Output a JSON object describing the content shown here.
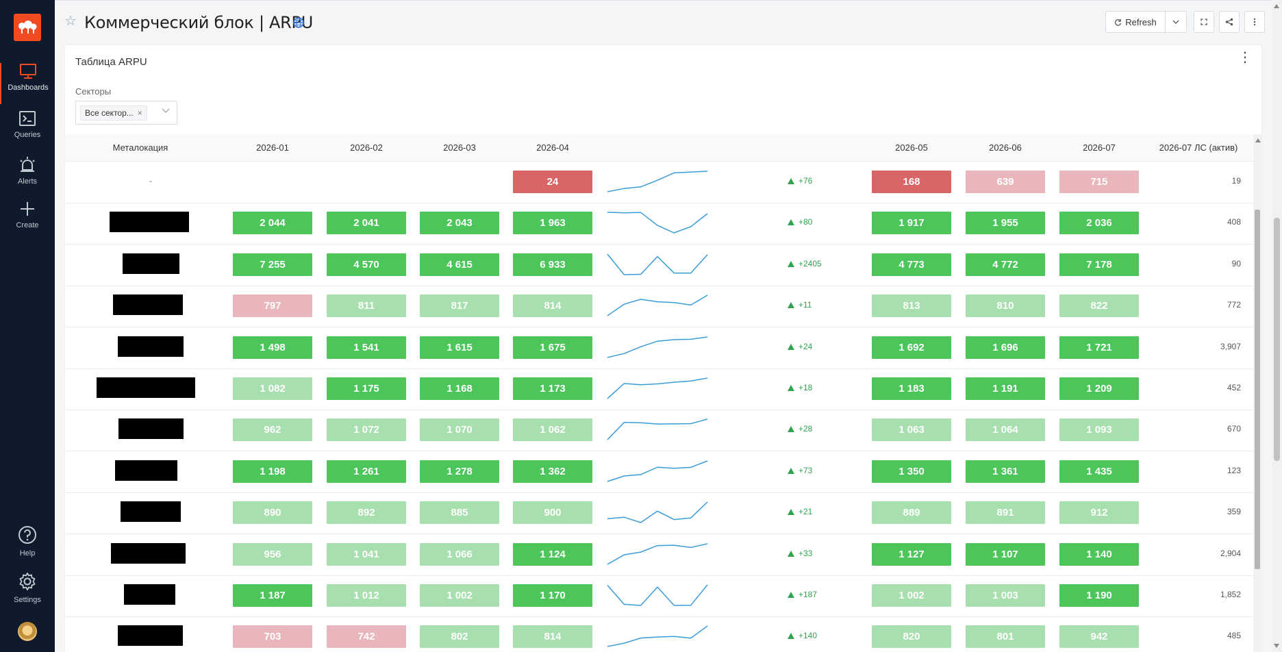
{
  "nav": {
    "items": [
      {
        "label": "Dashboards",
        "icon": "monitor-icon"
      },
      {
        "label": "Queries",
        "icon": "terminal-icon"
      },
      {
        "label": "Alerts",
        "icon": "alarm-icon"
      },
      {
        "label": "Create",
        "icon": "plus-icon"
      }
    ],
    "bottom": [
      {
        "label": "Help",
        "icon": "help-icon"
      },
      {
        "label": "Settings",
        "icon": "gear-icon"
      }
    ]
  },
  "header": {
    "title": "Коммерческий блок | ARPU",
    "refresh_label": "Refresh"
  },
  "widget": {
    "title": "Таблица ARPU",
    "filter_label": "Секторы",
    "filter_value": "Все сектор..."
  },
  "table": {
    "columns": [
      "Металокация",
      "2026-01",
      "2026-02",
      "2026-03",
      "2026-04",
      "2026-05",
      "2026-06",
      "2026-07",
      "2026-07 ЛС (актив)"
    ],
    "rows": [
      {
        "loc": "-",
        "redacted": false,
        "cells": [
          null,
          null,
          null,
          {
            "v": "24",
            "c": "r"
          }
        ],
        "spark": [
          7,
          11,
          13,
          21,
          30,
          31,
          32
        ],
        "delta": "+76",
        "right": [
          {
            "v": "168",
            "c": "r"
          },
          {
            "v": "639",
            "c": "p"
          },
          {
            "v": "715",
            "c": "p"
          }
        ],
        "ls": "19"
      },
      {
        "loc": "",
        "redacted": true,
        "cells": [
          {
            "v": "2 044",
            "c": "g"
          },
          {
            "v": "2 041",
            "c": "g"
          },
          {
            "v": "2 043",
            "c": "g"
          },
          {
            "v": "1 963",
            "c": "g"
          }
        ],
        "spark": [
          2044,
          2041,
          2043,
          1963,
          1917,
          1955,
          2036
        ],
        "delta": "+80",
        "right": [
          {
            "v": "1 917",
            "c": "g"
          },
          {
            "v": "1 955",
            "c": "g"
          },
          {
            "v": "2 036",
            "c": "g"
          }
        ],
        "ls": "408"
      },
      {
        "loc": "",
        "redacted": true,
        "cells": [
          {
            "v": "7 255",
            "c": "g"
          },
          {
            "v": "4 570",
            "c": "g"
          },
          {
            "v": "4 615",
            "c": "g"
          },
          {
            "v": "6 933",
            "c": "g"
          }
        ],
        "spark": [
          7255,
          4570,
          4615,
          6933,
          4773,
          4772,
          7178
        ],
        "delta": "+2405",
        "right": [
          {
            "v": "4 773",
            "c": "g"
          },
          {
            "v": "4 772",
            "c": "g"
          },
          {
            "v": "7 178",
            "c": "g"
          }
        ],
        "ls": "90"
      },
      {
        "loc": "",
        "redacted": true,
        "cells": [
          {
            "v": "797",
            "c": "p"
          },
          {
            "v": "811",
            "c": "lg"
          },
          {
            "v": "817",
            "c": "lg"
          },
          {
            "v": "814",
            "c": "lg"
          }
        ],
        "spark": [
          797,
          811,
          817,
          814,
          813,
          810,
          822
        ],
        "delta": "+11",
        "right": [
          {
            "v": "813",
            "c": "lg"
          },
          {
            "v": "810",
            "c": "lg"
          },
          {
            "v": "822",
            "c": "lg"
          }
        ],
        "ls": "772"
      },
      {
        "loc": "",
        "redacted": true,
        "cells": [
          {
            "v": "1 498",
            "c": "g"
          },
          {
            "v": "1 541",
            "c": "g"
          },
          {
            "v": "1 615",
            "c": "g"
          },
          {
            "v": "1 675",
            "c": "g"
          }
        ],
        "spark": [
          1498,
          1541,
          1615,
          1675,
          1692,
          1696,
          1721
        ],
        "delta": "+24",
        "right": [
          {
            "v": "1 692",
            "c": "g"
          },
          {
            "v": "1 696",
            "c": "g"
          },
          {
            "v": "1 721",
            "c": "g"
          }
        ],
        "ls": "3,907"
      },
      {
        "loc": "",
        "redacted": true,
        "cells": [
          {
            "v": "1 082",
            "c": "lg"
          },
          {
            "v": "1 175",
            "c": "g"
          },
          {
            "v": "1 168",
            "c": "g"
          },
          {
            "v": "1 173",
            "c": "g"
          }
        ],
        "spark": [
          1082,
          1175,
          1168,
          1173,
          1183,
          1191,
          1209
        ],
        "delta": "+18",
        "right": [
          {
            "v": "1 183",
            "c": "g"
          },
          {
            "v": "1 191",
            "c": "g"
          },
          {
            "v": "1 209",
            "c": "g"
          }
        ],
        "ls": "452"
      },
      {
        "loc": "",
        "redacted": true,
        "cells": [
          {
            "v": "962",
            "c": "lg"
          },
          {
            "v": "1 072",
            "c": "lg"
          },
          {
            "v": "1 070",
            "c": "lg"
          },
          {
            "v": "1 062",
            "c": "lg"
          }
        ],
        "spark": [
          962,
          1072,
          1070,
          1062,
          1063,
          1064,
          1093
        ],
        "delta": "+28",
        "right": [
          {
            "v": "1 063",
            "c": "lg"
          },
          {
            "v": "1 064",
            "c": "lg"
          },
          {
            "v": "1 093",
            "c": "lg"
          }
        ],
        "ls": "670"
      },
      {
        "loc": "",
        "redacted": true,
        "cells": [
          {
            "v": "1 198",
            "c": "g"
          },
          {
            "v": "1 261",
            "c": "g"
          },
          {
            "v": "1 278",
            "c": "g"
          },
          {
            "v": "1 362",
            "c": "g"
          }
        ],
        "spark": [
          1198,
          1261,
          1278,
          1362,
          1350,
          1361,
          1435
        ],
        "delta": "+73",
        "right": [
          {
            "v": "1 350",
            "c": "g"
          },
          {
            "v": "1 361",
            "c": "g"
          },
          {
            "v": "1 435",
            "c": "g"
          }
        ],
        "ls": "123"
      },
      {
        "loc": "",
        "redacted": true,
        "cells": [
          {
            "v": "890",
            "c": "lg"
          },
          {
            "v": "892",
            "c": "lg"
          },
          {
            "v": "885",
            "c": "lg"
          },
          {
            "v": "900",
            "c": "lg"
          }
        ],
        "spark": [
          890,
          892,
          885,
          900,
          889,
          891,
          912
        ],
        "delta": "+21",
        "right": [
          {
            "v": "889",
            "c": "lg"
          },
          {
            "v": "891",
            "c": "lg"
          },
          {
            "v": "912",
            "c": "lg"
          }
        ],
        "ls": "359"
      },
      {
        "loc": "",
        "redacted": true,
        "cells": [
          {
            "v": "956",
            "c": "lg"
          },
          {
            "v": "1 041",
            "c": "lg"
          },
          {
            "v": "1 066",
            "c": "lg"
          },
          {
            "v": "1 124",
            "c": "g"
          }
        ],
        "spark": [
          956,
          1041,
          1066,
          1124,
          1127,
          1107,
          1140
        ],
        "delta": "+33",
        "right": [
          {
            "v": "1 127",
            "c": "g"
          },
          {
            "v": "1 107",
            "c": "g"
          },
          {
            "v": "1 140",
            "c": "g"
          }
        ],
        "ls": "2,904"
      },
      {
        "loc": "",
        "redacted": true,
        "cells": [
          {
            "v": "1 187",
            "c": "g"
          },
          {
            "v": "1 012",
            "c": "lg"
          },
          {
            "v": "1 002",
            "c": "lg"
          },
          {
            "v": "1 170",
            "c": "g"
          }
        ],
        "spark": [
          1187,
          1012,
          1002,
          1170,
          1002,
          1003,
          1190
        ],
        "delta": "+187",
        "right": [
          {
            "v": "1 002",
            "c": "lg"
          },
          {
            "v": "1 003",
            "c": "lg"
          },
          {
            "v": "1 190",
            "c": "g"
          }
        ],
        "ls": "1,852"
      },
      {
        "loc": "",
        "redacted": true,
        "cells": [
          {
            "v": "703",
            "c": "p"
          },
          {
            "v": "742",
            "c": "p"
          },
          {
            "v": "802",
            "c": "lg"
          },
          {
            "v": "814",
            "c": "lg"
          }
        ],
        "spark": [
          703,
          742,
          802,
          814,
          820,
          801,
          942
        ],
        "delta": "+140",
        "right": [
          {
            "v": "820",
            "c": "lg"
          },
          {
            "v": "801",
            "c": "lg"
          },
          {
            "v": "942",
            "c": "lg"
          }
        ],
        "ls": "485"
      }
    ]
  },
  "colors": {
    "g": "#4cc55a",
    "lg": "#a8dfae",
    "r": "#d96566",
    "p": "#e8b6bb",
    "accent": "#f04b23",
    "sidebar": "#0f1b2d",
    "sparkline": "#3a9bd9"
  }
}
